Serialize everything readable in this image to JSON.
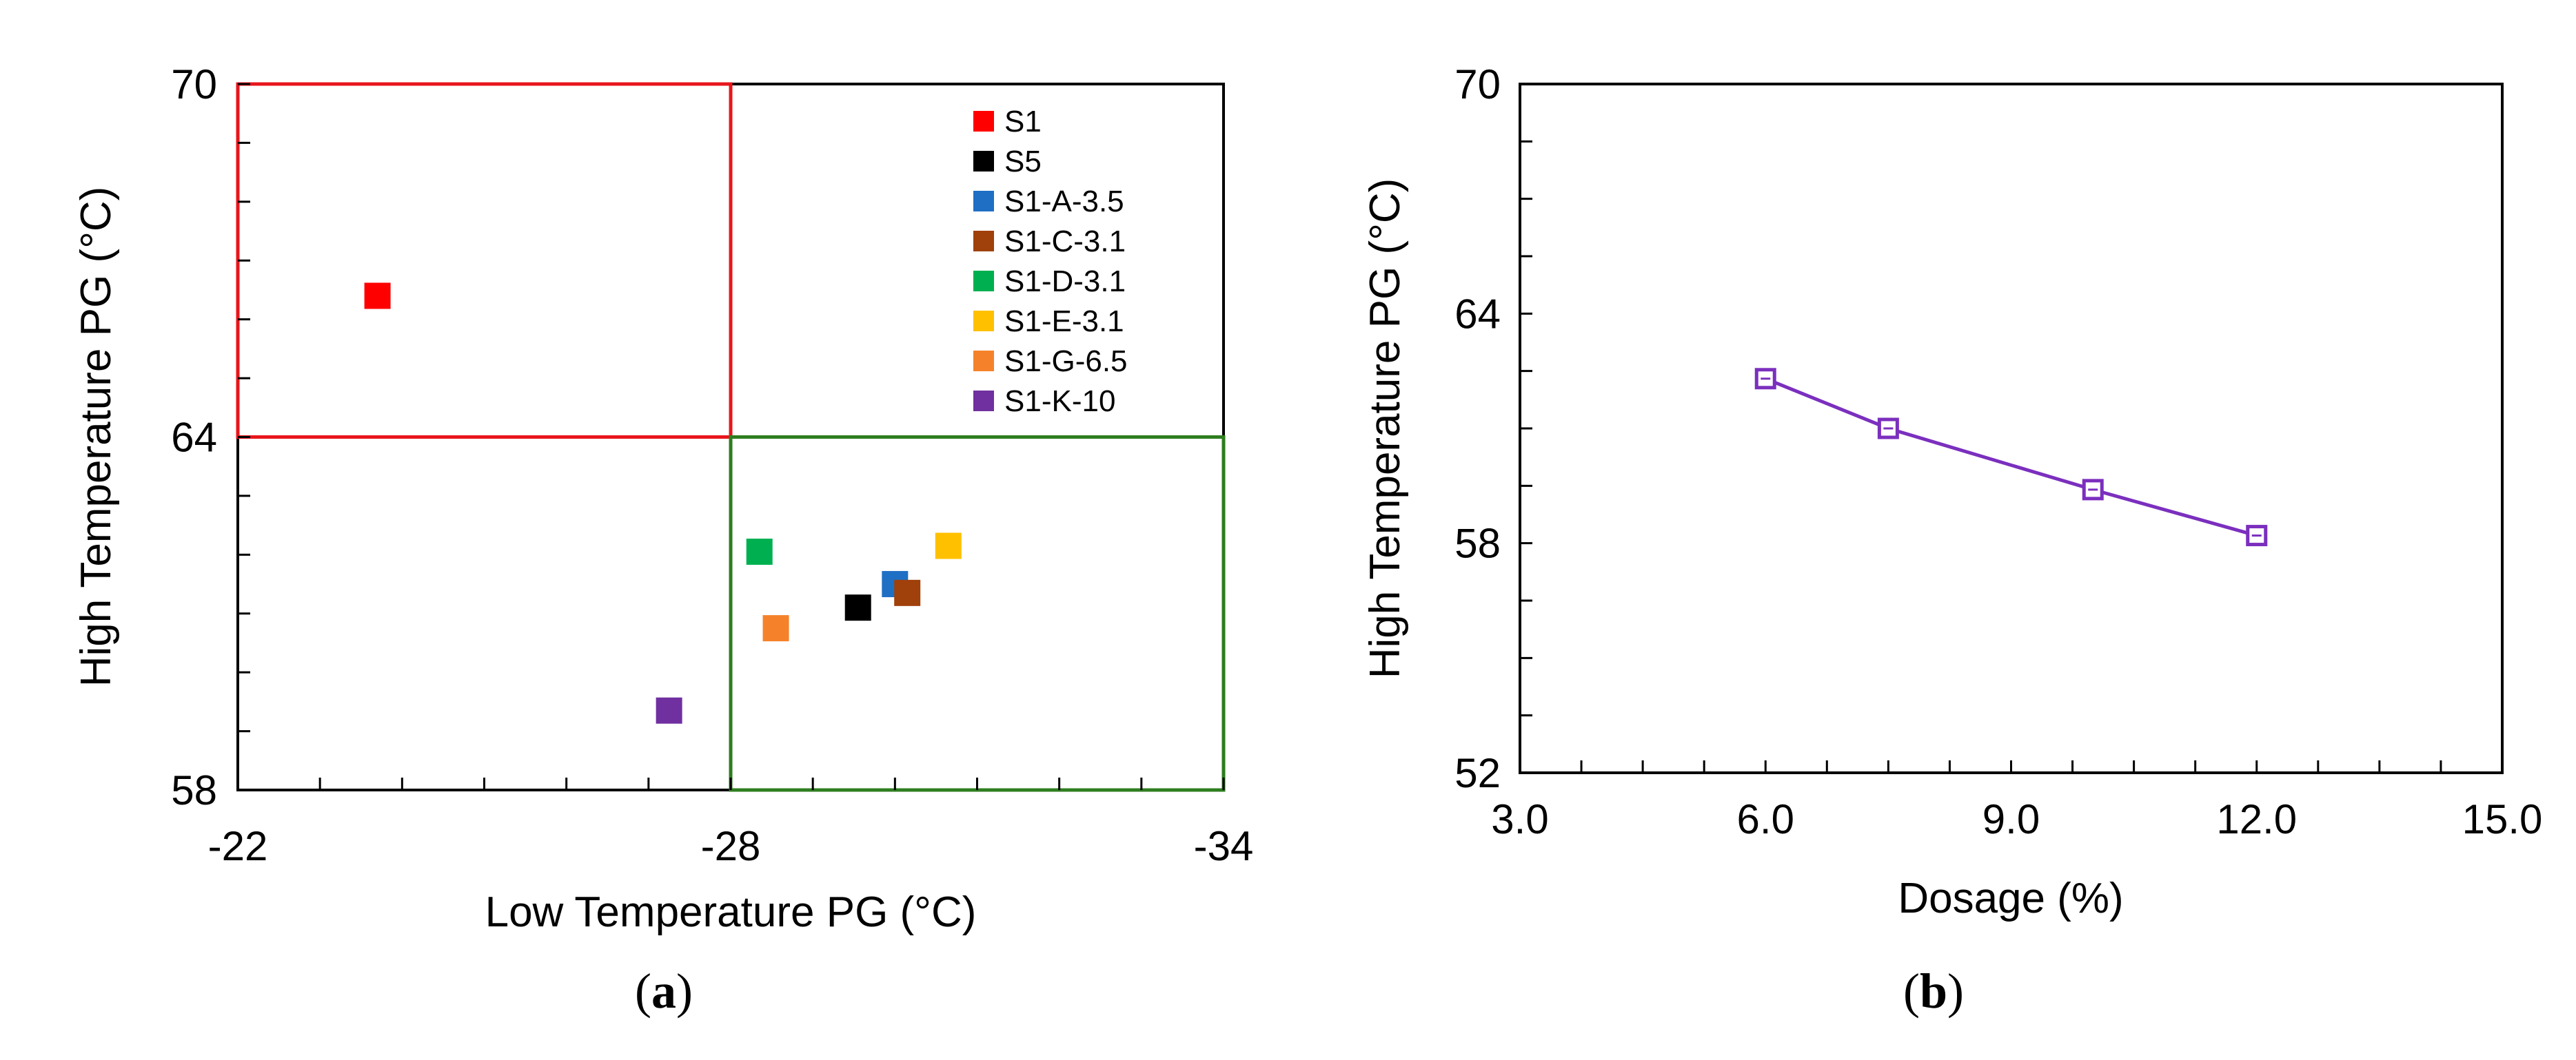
{
  "chart_data": [
    {
      "type": "scatter",
      "panel": "a",
      "xlabel": "Low Temperature PG (°C)",
      "ylabel": "High Temperature PG (°C)",
      "xlim": [
        -22,
        -34
      ],
      "ylim": [
        58,
        70
      ],
      "xticks": [
        "-22",
        "-28",
        "-34"
      ],
      "yticks": [
        "58",
        "64",
        "70"
      ],
      "regions": [
        {
          "name": "red-region",
          "color": "#E8161C",
          "x": [
            -22,
            -28
          ],
          "y": [
            64,
            70
          ]
        },
        {
          "name": "green-region",
          "color": "#2E7D1F",
          "x": [
            -28,
            -34
          ],
          "y": [
            58,
            64
          ]
        }
      ],
      "series": [
        {
          "name": "S1",
          "color": "#FF0000",
          "x": -23.7,
          "y": 66.4
        },
        {
          "name": "S5",
          "color": "#000000",
          "x": -29.55,
          "y": 61.1
        },
        {
          "name": "S1-A-3.5",
          "color": "#1F6FC5",
          "x": -30.0,
          "y": 61.5
        },
        {
          "name": "S1-C-3.1",
          "color": "#A0400A",
          "x": -30.15,
          "y": 61.35
        },
        {
          "name": "S1-D-3.1",
          "color": "#00B050",
          "x": -28.35,
          "y": 62.05
        },
        {
          "name": "S1-E-3.1",
          "color": "#FFC000",
          "x": -30.65,
          "y": 62.15
        },
        {
          "name": "S1-G-6.5",
          "color": "#F5822A",
          "x": -28.55,
          "y": 60.75
        },
        {
          "name": "S1-K-10",
          "color": "#7030A0",
          "x": -27.25,
          "y": 59.35
        }
      ]
    },
    {
      "type": "line",
      "panel": "b",
      "xlabel": "Dosage (%)",
      "ylabel": "High Temperature PG (°C)",
      "xlim": [
        3,
        15
      ],
      "ylim": [
        52,
        70
      ],
      "xticks": [
        "3.0",
        "6.0",
        "9.0",
        "12.0",
        "15.0"
      ],
      "yticks": [
        "52",
        "58",
        "64",
        "70"
      ],
      "color": "#7B2FBE",
      "x": [
        6,
        7.5,
        10,
        12
      ],
      "y": [
        62.3,
        61.0,
        59.4,
        58.2
      ]
    }
  ],
  "captions": {
    "a": "a",
    "b": "b"
  }
}
